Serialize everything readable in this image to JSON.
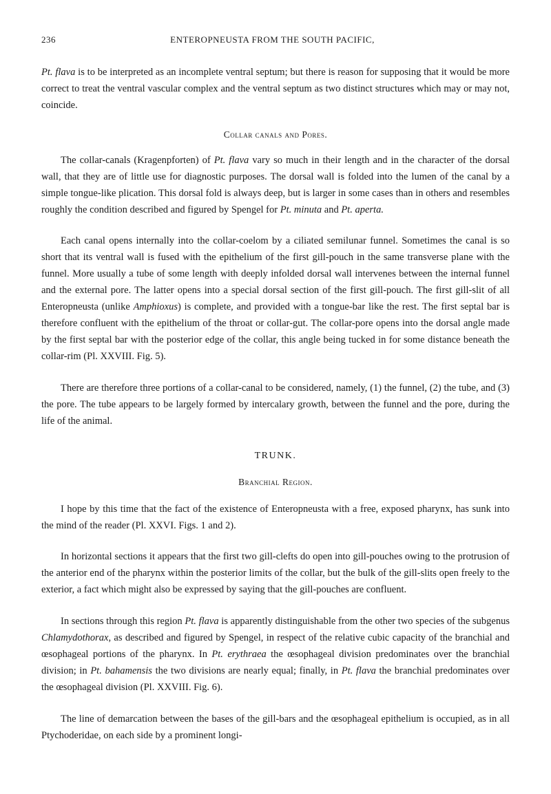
{
  "pageNumber": "236",
  "runningTitle": "ENTEROPNEUSTA FROM THE SOUTH PACIFIC,",
  "para1_part1": "Pt. flava",
  "para1_part2": " is to be interpreted as an incomplete ventral septum; but there is reason for supposing that it would be more correct to treat the ventral vascular complex and the ventral septum as two distinct structures which may or may not, coincide.",
  "heading1": "Collar canals and Pores.",
  "para2_part1": "The collar-canals (Kragenpforten) of ",
  "para2_part2": "Pt. flava",
  "para2_part3": " vary so much in their length and in the character of the dorsal wall, that they are of little use for diagnostic purposes. The dorsal wall is folded into the lumen of the canal by a simple tongue-like plication. This dorsal fold is always deep, but is larger in some cases than in others and resembles roughly the condition described and figured by Spengel for ",
  "para2_part4": "Pt. minuta",
  "para2_part5": " and ",
  "para2_part6": "Pt. aperta.",
  "para3_part1": "Each canal opens internally into the collar-coelom by a ciliated semilunar funnel. Sometimes the canal is so short that its ventral wall is fused with the epithelium of the first gill-pouch in the same transverse plane with the funnel. More usually a tube of some length with deeply infolded dorsal wall intervenes between the internal funnel and the external pore. The latter opens into a special dorsal section of the first gill-pouch. The first gill-slit of all Enteropneusta (unlike ",
  "para3_part2": "Amphioxus",
  "para3_part3": ") is complete, and provided with a tongue-bar like the rest. The first septal bar is therefore confluent with the epithelium of the throat or collar-gut. The collar-pore opens into the dorsal angle made by the first septal bar with the posterior edge of the collar, this angle being tucked in for some distance beneath the collar-rim (Pl. XXVIII. Fig. 5).",
  "para4": "There are therefore three portions of a collar-canal to be considered, namely, (1) the funnel, (2) the tube, and (3) the pore. The tube appears to be largely formed by intercalary growth, between the funnel and the pore, during the life of the animal.",
  "heading2": "TRUNK.",
  "heading3": "Branchial Region.",
  "para5": "I hope by this time that the fact of the existence of Enteropneusta with a free, exposed pharynx, has sunk into the mind of the reader (Pl. XXVI. Figs. 1 and 2).",
  "para6": "In horizontal sections it appears that the first two gill-clefts do open into gill-pouches owing to the protrusion of the anterior end of the pharynx within the posterior limits of the collar, but the bulk of the gill-slits open freely to the exterior, a fact which might also be expressed by saying that the gill-pouches are confluent.",
  "para7_part1": "In sections through this region ",
  "para7_part2": "Pt. flava",
  "para7_part3": " is apparently distinguishable from the other two species of the subgenus ",
  "para7_part4": "Chlamydothorax",
  "para7_part5": ", as described and figured by Spengel, in respect of the relative cubic capacity of the branchial and œsophageal portions of the pharynx. In ",
  "para7_part6": "Pt. erythraea",
  "para7_part7": " the œsophageal division predominates over the branchial division; in ",
  "para7_part8": "Pt. bahamensis",
  "para7_part9": " the two divisions are nearly equal; finally, in ",
  "para7_part10": "Pt. flava",
  "para7_part11": " the branchial predominates over the œsophageal division (Pl. XXVIII. Fig. 6).",
  "para8": "The line of demarcation between the bases of the gill-bars and the œsophageal epithelium is occupied, as in all Ptychoderidae, on each side by a prominent longi-"
}
